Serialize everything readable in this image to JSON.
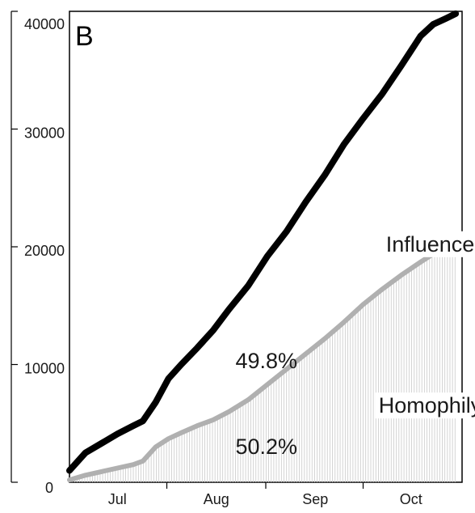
{
  "chart_data": {
    "type": "area",
    "panel_label": "B",
    "xlabel": "",
    "ylabel": "",
    "ylim": [
      0,
      40000
    ],
    "yticks": [
      "0",
      "10000",
      "20000",
      "30000",
      "40000"
    ],
    "xlim": [
      0,
      123
    ],
    "xticks": [
      {
        "label": "Jul",
        "x": 15
      },
      {
        "label": "Aug",
        "x": 46
      },
      {
        "label": "Sep",
        "x": 77
      },
      {
        "label": "Oct",
        "x": 107
      }
    ],
    "x": [
      0,
      5,
      10,
      15,
      20,
      23,
      27,
      31,
      35,
      40,
      45,
      50,
      56,
      62,
      68,
      74,
      80,
      86,
      92,
      98,
      104,
      110,
      114,
      118,
      121
    ],
    "series": [
      {
        "name": "Influence",
        "color": "#000000",
        "values": [
          1000,
          2500,
          3300,
          4100,
          4800,
          5200,
          6800,
          8800,
          10000,
          11400,
          12900,
          14700,
          16700,
          19200,
          21300,
          23800,
          26100,
          28700,
          30900,
          33000,
          35400,
          37900,
          38900,
          39400,
          39800
        ]
      },
      {
        "name": "Homophily",
        "color": "#b0b0b0",
        "fill": "#cfcfcf",
        "values": [
          200,
          600,
          900,
          1200,
          1500,
          1800,
          3000,
          3700,
          4200,
          4800,
          5300,
          6000,
          7000,
          8300,
          9600,
          10900,
          12200,
          13600,
          15100,
          16400,
          17600,
          18700,
          19400,
          19900,
          20100
        ]
      }
    ],
    "annotations": [
      {
        "text": "49.8%",
        "x": 52,
        "y": 9700
      },
      {
        "text": "50.2%",
        "x": 52,
        "y": 2400
      },
      {
        "text": "Influence",
        "x": 113,
        "y": 19600
      },
      {
        "text": "Homophily",
        "x": 113,
        "y": 5900
      }
    ]
  }
}
